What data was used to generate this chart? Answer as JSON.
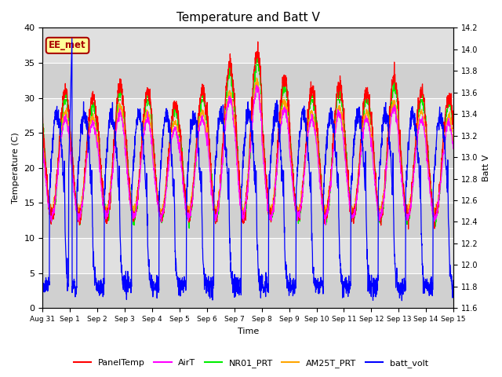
{
  "title": "Temperature and Batt V",
  "xlabel": "Time",
  "ylabel_left": "Temperature (C)",
  "ylabel_right": "Batt V",
  "ylim_left": [
    0,
    40
  ],
  "ylim_right": [
    11.6,
    14.2
  ],
  "annotation": "EE_met",
  "x_tick_labels": [
    "Aug 31",
    "Sep 1",
    "Sep 2",
    "Sep 3",
    "Sep 4",
    "Sep 5",
    "Sep 6",
    "Sep 7",
    "Sep 8",
    "Sep 9",
    "Sep 10",
    "Sep 11",
    "Sep 12",
    "Sep 13",
    "Sep 14",
    "Sep 15"
  ],
  "legend": [
    {
      "label": "PanelTemp",
      "color": "#FF0000"
    },
    {
      "label": "AirT",
      "color": "#FF00FF"
    },
    {
      "label": "NR01_PRT",
      "color": "#00EE00"
    },
    {
      "label": "AM25T_PRT",
      "color": "#FFA500"
    },
    {
      "label": "batt_volt",
      "color": "#0000FF"
    }
  ],
  "bg_color": "#DCDCDC",
  "alt_band_color": "#C8C8C8",
  "title_fontsize": 11,
  "batt_ylim": [
    11.6,
    14.2
  ],
  "temp_ylim": [
    0,
    40
  ]
}
